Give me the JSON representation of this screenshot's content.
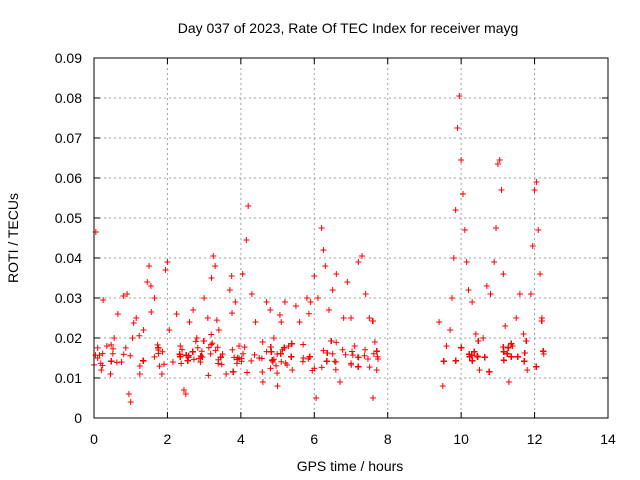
{
  "chart_data": {
    "type": "scatter",
    "title": "Day 037 of 2023, Rate Of TEC Index for receiver mayg",
    "xlabel": "GPS time / hours",
    "ylabel": "ROTI / TECUs",
    "xlim": [
      0,
      14
    ],
    "ylim": [
      0,
      0.09
    ],
    "xticks": [
      0,
      2,
      4,
      6,
      8,
      10,
      12,
      14
    ],
    "xtick_labels": [
      "0",
      "2",
      "4",
      "6",
      "8",
      "10",
      "12",
      "14"
    ],
    "yticks": [
      0,
      0.01,
      0.02,
      0.03,
      0.04,
      0.05,
      0.06,
      0.07,
      0.08,
      0.09
    ],
    "ytick_labels": [
      "0",
      "0.01",
      "0.02",
      "0.03",
      "0.04",
      "0.05",
      "0.06",
      "0.07",
      "0.08",
      "0.09"
    ],
    "grid": true,
    "marker": "+",
    "color": "#ff0000",
    "series": [
      {
        "name": "ROTI",
        "points": [
          [
            0.05,
            0.0465
          ],
          [
            0.1,
            0.015
          ],
          [
            0.2,
            0.012
          ],
          [
            0.25,
            0.0295
          ],
          [
            0.35,
            0.018
          ],
          [
            0.45,
            0.011
          ],
          [
            0.55,
            0.02
          ],
          [
            0.65,
            0.026
          ],
          [
            0.75,
            0.014
          ],
          [
            0.8,
            0.0305
          ],
          [
            0.9,
            0.031
          ],
          [
            0.95,
            0.006
          ],
          [
            1.0,
            0.004
          ],
          [
            1.05,
            0.02
          ],
          [
            1.15,
            0.025
          ],
          [
            1.25,
            0.013
          ],
          [
            1.35,
            0.022
          ],
          [
            1.45,
            0.034
          ],
          [
            1.5,
            0.038
          ],
          [
            1.55,
            0.033
          ],
          [
            1.65,
            0.03
          ],
          [
            1.75,
            0.017
          ],
          [
            1.85,
            0.011
          ],
          [
            1.95,
            0.037
          ],
          [
            2.0,
            0.039
          ],
          [
            2.05,
            0.022
          ],
          [
            2.15,
            0.014
          ],
          [
            2.25,
            0.026
          ],
          [
            2.35,
            0.018
          ],
          [
            2.45,
            0.007
          ],
          [
            2.5,
            0.006
          ],
          [
            2.6,
            0.024
          ],
          [
            2.7,
            0.027
          ],
          [
            2.8,
            0.02
          ],
          [
            2.9,
            0.014
          ],
          [
            3.0,
            0.03
          ],
          [
            3.1,
            0.025
          ],
          [
            3.2,
            0.035
          ],
          [
            3.25,
            0.0405
          ],
          [
            3.3,
            0.038
          ],
          [
            3.4,
            0.022
          ],
          [
            3.5,
            0.016
          ],
          [
            3.6,
            0.011
          ],
          [
            3.7,
            0.032
          ],
          [
            3.75,
            0.0355
          ],
          [
            3.85,
            0.029
          ],
          [
            3.95,
            0.018
          ],
          [
            4.05,
            0.036
          ],
          [
            4.15,
            0.0445
          ],
          [
            4.2,
            0.053
          ],
          [
            4.3,
            0.031
          ],
          [
            4.4,
            0.024
          ],
          [
            4.5,
            0.015
          ],
          [
            4.6,
            0.009
          ],
          [
            4.7,
            0.029
          ],
          [
            4.8,
            0.027
          ],
          [
            4.9,
            0.02
          ],
          [
            5.0,
            0.008
          ],
          [
            5.1,
            0.024
          ],
          [
            5.2,
            0.029
          ],
          [
            5.3,
            0.018
          ],
          [
            5.4,
            0.012
          ],
          [
            5.5,
            0.028
          ],
          [
            5.6,
            0.024
          ],
          [
            5.7,
            0.015
          ],
          [
            5.8,
            0.03
          ],
          [
            5.9,
            0.029
          ],
          [
            6.0,
            0.0355
          ],
          [
            6.05,
            0.005
          ],
          [
            6.1,
            0.03
          ],
          [
            6.2,
            0.0475
          ],
          [
            6.25,
            0.042
          ],
          [
            6.3,
            0.038
          ],
          [
            6.4,
            0.027
          ],
          [
            6.5,
            0.032
          ],
          [
            6.6,
            0.036
          ],
          [
            6.7,
            0.009
          ],
          [
            6.8,
            0.025
          ],
          [
            6.9,
            0.034
          ],
          [
            7.0,
            0.025
          ],
          [
            7.1,
            0.018
          ],
          [
            7.2,
            0.039
          ],
          [
            7.3,
            0.0405
          ],
          [
            7.4,
            0.031
          ],
          [
            7.5,
            0.025
          ],
          [
            7.6,
            0.005
          ],
          [
            7.65,
            0.019
          ],
          [
            7.7,
            0.012
          ],
          [
            9.4,
            0.024
          ],
          [
            9.5,
            0.008
          ],
          [
            9.6,
            0.018
          ],
          [
            9.7,
            0.022
          ],
          [
            9.75,
            0.03
          ],
          [
            9.8,
            0.04
          ],
          [
            9.85,
            0.052
          ],
          [
            9.9,
            0.0725
          ],
          [
            9.95,
            0.0805
          ],
          [
            10.0,
            0.0645
          ],
          [
            10.05,
            0.056
          ],
          [
            10.1,
            0.047
          ],
          [
            10.15,
            0.039
          ],
          [
            10.2,
            0.032
          ],
          [
            10.3,
            0.029
          ],
          [
            10.4,
            0.021
          ],
          [
            10.5,
            0.012
          ],
          [
            10.6,
            0.02
          ],
          [
            10.7,
            0.033
          ],
          [
            10.8,
            0.031
          ],
          [
            10.9,
            0.039
          ],
          [
            10.95,
            0.0475
          ],
          [
            11.0,
            0.0635
          ],
          [
            11.05,
            0.0645
          ],
          [
            11.1,
            0.057
          ],
          [
            11.15,
            0.036
          ],
          [
            11.2,
            0.023
          ],
          [
            11.3,
            0.009
          ],
          [
            11.4,
            0.018
          ],
          [
            11.5,
            0.025
          ],
          [
            11.6,
            0.031
          ],
          [
            11.7,
            0.021
          ],
          [
            11.8,
            0.012
          ],
          [
            11.9,
            0.031
          ],
          [
            11.95,
            0.043
          ],
          [
            12.0,
            0.057
          ],
          [
            12.05,
            0.059
          ],
          [
            12.1,
            0.047
          ],
          [
            12.15,
            0.036
          ],
          [
            12.2,
            0.025
          ],
          [
            12.25,
            0.016
          ]
        ]
      }
    ],
    "dense_bands": [
      {
        "x_start": 0.0,
        "x_end": 7.75,
        "y_center": 0.0145,
        "y_spread": 0.006
      },
      {
        "x_start": 9.35,
        "x_end": 12.25,
        "y_center": 0.0145,
        "y_spread": 0.006
      }
    ]
  }
}
